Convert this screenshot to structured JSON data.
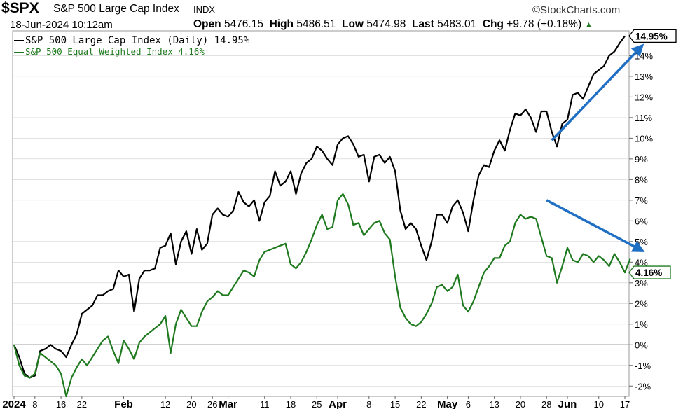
{
  "header": {
    "symbol": "$SPX",
    "name": "S&P 500 Large Cap Index",
    "exchange": "INDX",
    "brand": "©StockCharts.com",
    "datetime": "18-Jun-2024 10:12am",
    "open_label": "Open",
    "open": "5476.15",
    "high_label": "High",
    "high": "5486.51",
    "low_label": "Low",
    "low": "5474.98",
    "last_label": "Last",
    "last": "5483.01",
    "chg_label": "Chg",
    "chg": "+9.78 (+0.18%)"
  },
  "legend": {
    "line1": "S&P 500 Large Cap Index (Daily) 14.95%",
    "line2": "S&P 500 Equal Weighted Index 4.16%"
  },
  "colors": {
    "spx": "#000000",
    "rsp": "#1f7a1f",
    "arrow": "#1f6fc4",
    "zero": "#808080",
    "grid": "#cfcfcf"
  },
  "chart_data": {
    "type": "line",
    "ylim": [
      -2.5,
      15.2
    ],
    "yticks": [
      -2,
      -1,
      0,
      1,
      2,
      3,
      4,
      5,
      6,
      7,
      8,
      9,
      10,
      11,
      12,
      13,
      14
    ],
    "ytick_labels": [
      "-2%",
      "-1%",
      "0%",
      "1%",
      "2%",
      "3%",
      "4%",
      "5%",
      "6%",
      "7%",
      "8%",
      "9%",
      "10%",
      "11%",
      "12%",
      "13%",
      "14%"
    ],
    "x_labels": [
      {
        "label": "2024",
        "bold": true,
        "i": 0
      },
      {
        "label": "8",
        "bold": false,
        "i": 4
      },
      {
        "label": "16",
        "bold": false,
        "i": 9
      },
      {
        "label": "22",
        "bold": false,
        "i": 13
      },
      {
        "label": "Feb",
        "bold": true,
        "i": 21
      },
      {
        "label": "12",
        "bold": false,
        "i": 29
      },
      {
        "label": "20",
        "bold": false,
        "i": 34
      },
      {
        "label": "26",
        "bold": false,
        "i": 38
      },
      {
        "label": "Mar",
        "bold": true,
        "i": 41
      },
      {
        "label": "11",
        "bold": false,
        "i": 48
      },
      {
        "label": "18",
        "bold": false,
        "i": 53
      },
      {
        "label": "25",
        "bold": false,
        "i": 58
      },
      {
        "label": "Apr",
        "bold": true,
        "i": 62
      },
      {
        "label": "8",
        "bold": false,
        "i": 68
      },
      {
        "label": "15",
        "bold": false,
        "i": 73
      },
      {
        "label": "22",
        "bold": false,
        "i": 78
      },
      {
        "label": "May",
        "bold": true,
        "i": 83
      },
      {
        "label": "6",
        "bold": false,
        "i": 87
      },
      {
        "label": "13",
        "bold": false,
        "i": 92
      },
      {
        "label": "20",
        "bold": false,
        "i": 97
      },
      {
        "label": "28",
        "bold": false,
        "i": 102
      },
      {
        "label": "Jun",
        "bold": true,
        "i": 106
      },
      {
        "label": "10",
        "bold": false,
        "i": 112
      },
      {
        "label": "17",
        "bold": false,
        "i": 117
      }
    ],
    "series": [
      {
        "name": "S&P 500 Large Cap Index (Daily) 14.95%",
        "end_label": "14.95%",
        "values": [
          0,
          -0.6,
          -1.4,
          -1.6,
          -1.5,
          -0.3,
          -0.2,
          0.0,
          -0.2,
          -0.3,
          -0.6,
          0.0,
          0.5,
          1.5,
          1.7,
          1.9,
          2.4,
          2.4,
          2.6,
          2.7,
          3.6,
          3.3,
          3.4,
          1.6,
          3.2,
          3.6,
          3.6,
          3.7,
          4.7,
          4.8,
          5.4,
          3.9,
          5.0,
          5.5,
          4.4,
          5.6,
          4.6,
          4.9,
          6.3,
          6.6,
          6.3,
          6.2,
          6.5,
          7.4,
          6.9,
          6.7,
          7.0,
          6.0,
          6.9,
          7.2,
          8.4,
          7.7,
          7.9,
          8.4,
          7.3,
          8.3,
          8.8,
          9.0,
          9.6,
          9.4,
          9.0,
          8.7,
          9.7,
          10.0,
          10.1,
          9.7,
          9.1,
          9.2,
          7.9,
          9.1,
          9.2,
          8.8,
          9.1,
          8.4,
          6.5,
          5.6,
          5.9,
          5.6,
          4.8,
          4.1,
          5.0,
          6.3,
          6.3,
          5.9,
          6.7,
          7.0,
          6.4,
          5.5,
          7.0,
          8.2,
          8.7,
          8.6,
          9.4,
          9.9,
          9.4,
          10.4,
          11.2,
          11.1,
          11.4,
          11.0,
          10.3,
          11.3,
          11.3,
          10.3,
          9.6,
          10.7,
          10.9,
          12.1,
          12.2,
          11.9,
          12.5,
          13.1,
          13.3,
          13.5,
          14.0,
          14.2,
          14.6,
          14.95
        ]
      },
      {
        "name": "S&P 500 Equal Weighted Index 4.16%",
        "end_label": "4.16%",
        "values": [
          0,
          -1.0,
          -1.5,
          -1.6,
          -1.4,
          -0.4,
          -0.6,
          -0.8,
          -1.0,
          -1.4,
          -2.5,
          -1.6,
          -1.1,
          -0.7,
          -1.0,
          -0.6,
          -0.2,
          0.2,
          0.4,
          -0.3,
          -0.9,
          0.2,
          -0.2,
          -0.7,
          0.1,
          0.4,
          0.6,
          0.8,
          1.0,
          1.4,
          -0.4,
          1.0,
          1.7,
          1.3,
          0.9,
          0.9,
          1.6,
          2.1,
          2.3,
          2.6,
          2.4,
          2.4,
          2.8,
          3.2,
          3.6,
          3.5,
          3.3,
          4.1,
          4.5,
          4.6,
          4.7,
          4.8,
          4.9,
          3.9,
          3.7,
          4.0,
          4.5,
          5.1,
          5.8,
          6.3,
          5.6,
          5.7,
          7.0,
          7.3,
          6.8,
          5.8,
          5.9,
          5.3,
          5.6,
          5.9,
          6.0,
          5.4,
          5.1,
          3.3,
          1.8,
          1.3,
          1.0,
          0.9,
          1.1,
          1.5,
          2.0,
          2.8,
          2.9,
          2.6,
          2.8,
          3.4,
          1.9,
          1.6,
          2.1,
          2.8,
          3.5,
          3.8,
          4.2,
          4.2,
          4.8,
          5.0,
          5.9,
          6.3,
          6.1,
          6.2,
          6.1,
          5.2,
          4.3,
          4.2,
          3.0,
          3.8,
          4.7,
          4.1,
          4.0,
          4.4,
          4.3,
          4.0,
          4.3,
          4.1,
          3.8,
          4.4,
          4.0,
          3.5,
          4.16
        ]
      }
    ],
    "annotations": [
      {
        "type": "arrow",
        "target": "S&P 500 Large Cap Index",
        "from": [
          103,
          9.9
        ],
        "to": [
          120,
          14.4
        ]
      },
      {
        "type": "arrow",
        "target": "S&P 500 Equal Weighted Index",
        "from": [
          102,
          7.0
        ],
        "to": [
          120,
          4.6
        ]
      }
    ]
  }
}
